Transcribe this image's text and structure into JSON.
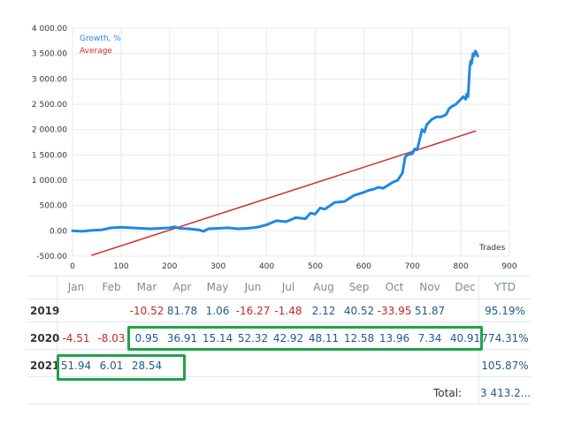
{
  "chart_data": {
    "type": "line",
    "legend": [
      {
        "name": "Growth, %",
        "color": "#1e88e5"
      },
      {
        "name": "Average",
        "color": "#d32f2f"
      }
    ],
    "legend_position": "top-left",
    "x_axis_label": "Trades",
    "xlim": [
      0,
      900
    ],
    "ylim": [
      -500,
      4000
    ],
    "x_ticks": [
      "0",
      "100",
      "200",
      "300",
      "400",
      "500",
      "600",
      "700",
      "800",
      "900"
    ],
    "y_ticks": [
      "-500.00",
      "0.00",
      "500.00",
      "1 000.00",
      "1 500.00",
      "2 000.00",
      "2 500.00",
      "3 000.00",
      "3 500.00",
      "4 000.00"
    ],
    "grid": true,
    "series": [
      {
        "name": "Growth, %",
        "color": "#1e88e5",
        "points": [
          [
            0,
            0
          ],
          [
            20,
            -10
          ],
          [
            40,
            10
          ],
          [
            60,
            20
          ],
          [
            80,
            60
          ],
          [
            100,
            70
          ],
          [
            120,
            60
          ],
          [
            140,
            50
          ],
          [
            160,
            40
          ],
          [
            180,
            50
          ],
          [
            200,
            60
          ],
          [
            210,
            80
          ],
          [
            220,
            50
          ],
          [
            240,
            40
          ],
          [
            260,
            20
          ],
          [
            270,
            -10
          ],
          [
            280,
            40
          ],
          [
            300,
            50
          ],
          [
            320,
            60
          ],
          [
            340,
            40
          ],
          [
            360,
            50
          ],
          [
            380,
            70
          ],
          [
            400,
            120
          ],
          [
            420,
            200
          ],
          [
            440,
            180
          ],
          [
            460,
            260
          ],
          [
            480,
            240
          ],
          [
            490,
            350
          ],
          [
            500,
            330
          ],
          [
            510,
            450
          ],
          [
            520,
            430
          ],
          [
            540,
            560
          ],
          [
            560,
            580
          ],
          [
            580,
            700
          ],
          [
            600,
            760
          ],
          [
            610,
            800
          ],
          [
            620,
            820
          ],
          [
            630,
            860
          ],
          [
            640,
            840
          ],
          [
            650,
            900
          ],
          [
            660,
            960
          ],
          [
            670,
            1000
          ],
          [
            680,
            1150
          ],
          [
            685,
            1450
          ],
          [
            690,
            1500
          ],
          [
            700,
            1520
          ],
          [
            705,
            1620
          ],
          [
            710,
            1600
          ],
          [
            720,
            2000
          ],
          [
            725,
            1950
          ],
          [
            730,
            2100
          ],
          [
            740,
            2200
          ],
          [
            750,
            2250
          ],
          [
            760,
            2250
          ],
          [
            770,
            2300
          ],
          [
            775,
            2400
          ],
          [
            780,
            2450
          ],
          [
            790,
            2500
          ],
          [
            800,
            2600
          ],
          [
            805,
            2650
          ],
          [
            810,
            2600
          ],
          [
            812,
            2700
          ],
          [
            815,
            2650
          ],
          [
            818,
            3200
          ],
          [
            820,
            3350
          ],
          [
            822,
            3300
          ],
          [
            825,
            3500
          ],
          [
            827,
            3450
          ],
          [
            830,
            3550
          ],
          [
            833,
            3500
          ],
          [
            835,
            3450
          ]
        ]
      },
      {
        "name": "Average",
        "color": "#d32f2f",
        "points": [
          [
            40,
            -480
          ],
          [
            830,
            1970
          ]
        ]
      }
    ]
  },
  "table": {
    "months": [
      "Jan",
      "Feb",
      "Mar",
      "Apr",
      "May",
      "Jun",
      "Jul",
      "Aug",
      "Sep",
      "Oct",
      "Nov",
      "Dec"
    ],
    "ytd_header": "YTD",
    "rows": [
      {
        "year": "2019",
        "values": [
          "",
          "",
          "-10.52",
          "81.78",
          "1.06",
          "-16.27",
          "-1.48",
          "2.12",
          "40.52",
          "-33.95",
          "51.87",
          ""
        ],
        "ytd": "95.19%"
      },
      {
        "year": "2020",
        "values": [
          "-4.51",
          "-8.03",
          "0.95",
          "36.91",
          "15.14",
          "52.32",
          "42.92",
          "48.11",
          "12.58",
          "13.96",
          "7.34",
          "40.91"
        ],
        "ytd": "774.31%"
      },
      {
        "year": "2021",
        "values": [
          "51.94",
          "6.01",
          "28.54",
          "",
          "",
          "",
          "",
          "",
          "",
          "",
          "",
          ""
        ],
        "ytd": "105.87%"
      }
    ],
    "total_label": "Total:",
    "total_value": "3 413.2..."
  }
}
